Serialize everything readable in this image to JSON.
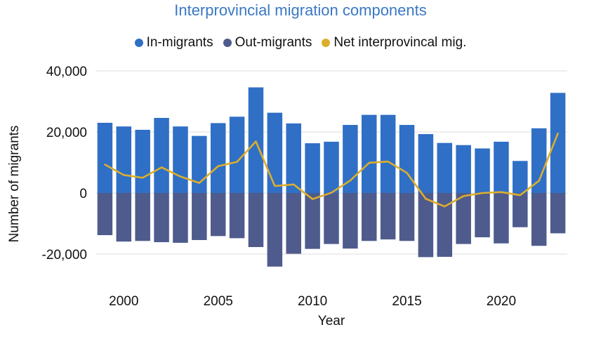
{
  "chart_data": {
    "type": "bar",
    "title": "Interprovincial migration components",
    "xlabel": "Year",
    "ylabel": "Number of migrants",
    "ylim": [
      -30000,
      40000
    ],
    "y_ticks": [
      40000,
      20000,
      0,
      -20000
    ],
    "y_tick_labels": [
      "40,000",
      "20,000",
      "0",
      "-20,000"
    ],
    "x_ticks": [
      2000,
      2005,
      2010,
      2015,
      2020
    ],
    "x_tick_labels": [
      "2000",
      "2005",
      "2010",
      "2015",
      "2020"
    ],
    "grid": true,
    "legend_position": "top",
    "x": [
      1999,
      2000,
      2001,
      2002,
      2003,
      2004,
      2005,
      2006,
      2007,
      2008,
      2009,
      2010,
      2011,
      2012,
      2013,
      2014,
      2015,
      2016,
      2017,
      2018,
      2019,
      2020,
      2021,
      2022,
      2023
    ],
    "series": [
      {
        "name": "In-migrants",
        "type": "bar",
        "color": "#2f6fc6",
        "values": [
          23000,
          21800,
          20700,
          24600,
          21800,
          18700,
          22900,
          25000,
          34600,
          26300,
          22800,
          16300,
          16800,
          22300,
          25600,
          25600,
          22300,
          19300,
          16400,
          15700,
          14600,
          16800,
          10500,
          21200,
          32800
        ]
      },
      {
        "name": "Out-migrants",
        "type": "bar",
        "color": "#4e5b8c",
        "values": [
          -13800,
          -15900,
          -15700,
          -16100,
          -16300,
          -15400,
          -14100,
          -14800,
          -17700,
          -24100,
          -19900,
          -18300,
          -16700,
          -18200,
          -15700,
          -15200,
          -15700,
          -21000,
          -20900,
          -16700,
          -14500,
          -16500,
          -11200,
          -17300,
          -13200
        ]
      },
      {
        "name": "Net interprovincal mig.",
        "type": "line",
        "color": "#dcae2c",
        "values": [
          9300,
          5900,
          5000,
          8400,
          5400,
          3300,
          8800,
          10200,
          16900,
          2300,
          2800,
          -2000,
          100,
          4100,
          9900,
          10300,
          6600,
          -1900,
          -4400,
          -1000,
          0,
          300,
          -700,
          4000,
          19500
        ]
      }
    ]
  }
}
